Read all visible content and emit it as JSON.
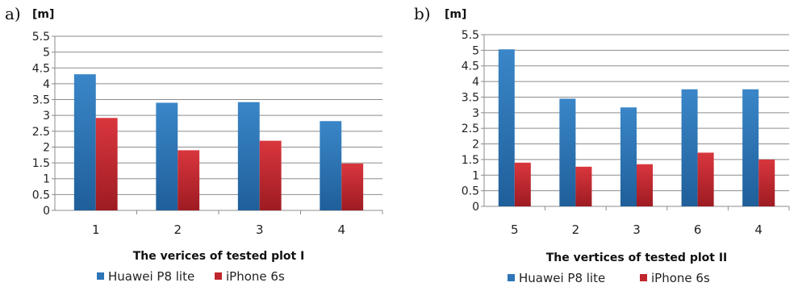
{
  "chart_data": [
    {
      "type": "bar",
      "panel_label": "a)",
      "unit": "[m]",
      "xlabel": "The verices of tested plot I",
      "ylim": [
        0,
        5.5
      ],
      "y_ticks": [
        "0",
        "0.5",
        "1",
        "1.5",
        "2",
        "2.5",
        "3",
        "3.5",
        "4",
        "4.5",
        "5",
        "5.5"
      ],
      "categories": [
        "1",
        "2",
        "3",
        "4"
      ],
      "grid": true,
      "legend_position": "bottom",
      "series": [
        {
          "name": "Huawei P8 lite",
          "color": "#2e75b6",
          "values": [
            4.3,
            3.4,
            3.42,
            2.82
          ]
        },
        {
          "name": "iPhone 6s",
          "color": "#c0262d",
          "values": [
            2.92,
            1.9,
            2.2,
            1.48
          ]
        }
      ]
    },
    {
      "type": "bar",
      "panel_label": "b)",
      "unit": "[m]",
      "xlabel": "The vertices of tested plot II",
      "ylim": [
        0,
        5.5
      ],
      "y_ticks": [
        "0",
        "0.5",
        "1",
        "1.5",
        "2",
        "2.5",
        "3",
        "3.5",
        "4",
        "4.5",
        "5",
        "5.5"
      ],
      "categories": [
        "5",
        "2",
        "3",
        "6",
        "4"
      ],
      "grid": true,
      "legend_position": "bottom",
      "series": [
        {
          "name": "Huawei P8 lite",
          "color": "#2e75b6",
          "values": [
            5.03,
            3.45,
            3.17,
            3.75,
            3.75
          ]
        },
        {
          "name": "iPhone 6s",
          "color": "#c0262d",
          "values": [
            1.4,
            1.27,
            1.35,
            1.72,
            1.5
          ]
        }
      ]
    }
  ]
}
